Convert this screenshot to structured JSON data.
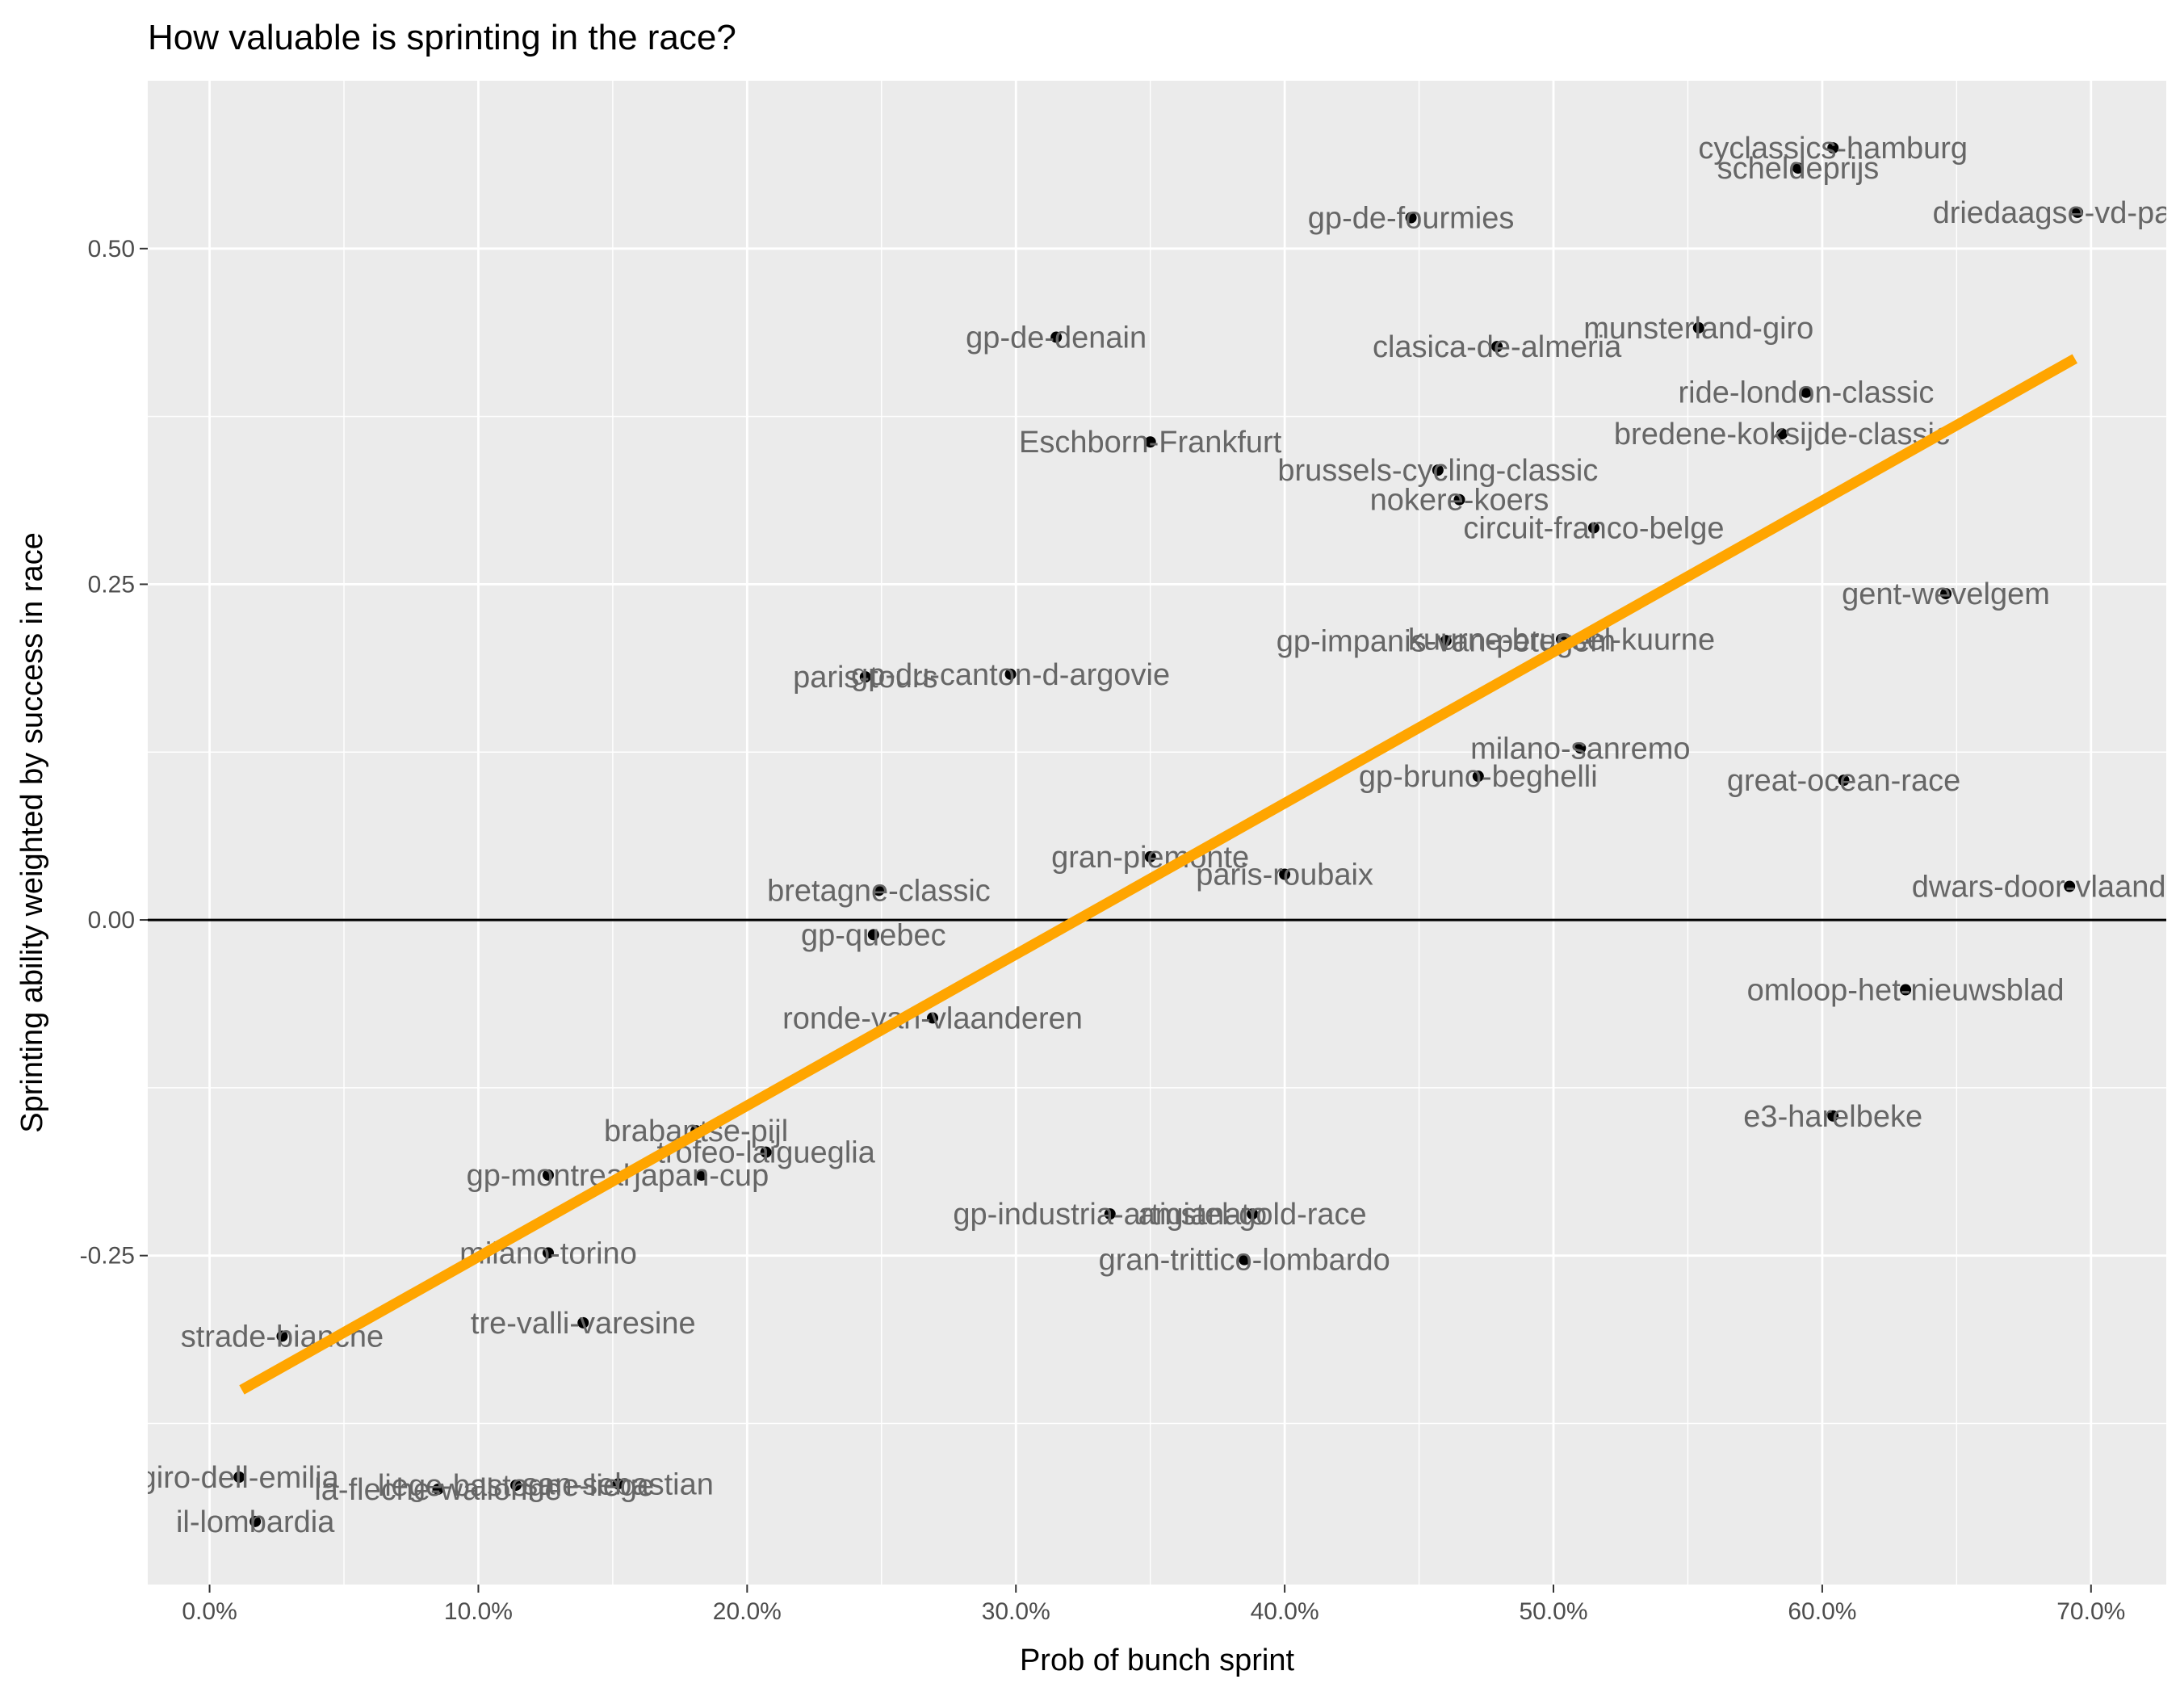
{
  "chart_data": {
    "type": "scatter",
    "title": "How valuable is sprinting in the race?",
    "xlabel": "Prob of bunch sprint",
    "ylabel": "Sprinting ability weighted by success in race",
    "xlim": [
      -0.023,
      0.728
    ],
    "ylim": [
      -0.495,
      0.625
    ],
    "x_ticks": [
      0.0,
      0.1,
      0.2,
      0.3,
      0.4,
      0.5,
      0.6,
      0.7
    ],
    "x_tick_labels": [
      "0.0%",
      "10.0%",
      "20.0%",
      "30.0%",
      "40.0%",
      "50.0%",
      "60.0%",
      "70.0%"
    ],
    "y_ticks": [
      -0.25,
      0.0,
      0.25,
      0.5
    ],
    "y_tick_labels": [
      "-0.25",
      "0.00",
      "0.25",
      "0.50"
    ],
    "grid": true,
    "zero_line": true,
    "colors": {
      "panel_background": "#ebebeb",
      "grid": "#ffffff",
      "point": "#000000",
      "label": "#666666",
      "trend": "#ffa500"
    },
    "trend_line": {
      "x": [
        0.012,
        0.694
      ],
      "y": [
        -0.35,
        0.418
      ]
    },
    "points": [
      {
        "label": "cyclassics-hamburg",
        "x": 0.604,
        "y": 0.575
      },
      {
        "label": "scheldeprijs",
        "x": 0.591,
        "y": 0.56
      },
      {
        "label": "driedaagse-vd-panne",
        "x": 0.695,
        "y": 0.527
      },
      {
        "label": "gp-de-fourmies",
        "x": 0.447,
        "y": 0.523
      },
      {
        "label": "gp-de-denain",
        "x": 0.315,
        "y": 0.434
      },
      {
        "label": "munsterland-giro",
        "x": 0.554,
        "y": 0.441
      },
      {
        "label": "clasica-de-almeria",
        "x": 0.479,
        "y": 0.427
      },
      {
        "label": "ride-london-classic",
        "x": 0.594,
        "y": 0.393
      },
      {
        "label": "Eschborn-Frankfurt",
        "x": 0.35,
        "y": 0.356
      },
      {
        "label": "bredene-koksijde-classic",
        "x": 0.585,
        "y": 0.362
      },
      {
        "label": "brussels-cycling-classic",
        "x": 0.457,
        "y": 0.335
      },
      {
        "label": "nokere-koers",
        "x": 0.465,
        "y": 0.313
      },
      {
        "label": "circuit-franco-belge",
        "x": 0.515,
        "y": 0.292
      },
      {
        "label": "gent-wevelgem",
        "x": 0.646,
        "y": 0.243
      },
      {
        "label": "gp-impanis-van-petegem",
        "x": 0.46,
        "y": 0.208
      },
      {
        "label": "kuurne-brussel-kuurne",
        "x": 0.503,
        "y": 0.209
      },
      {
        "label": "gp-du-canton-d-argovie",
        "x": 0.298,
        "y": 0.183
      },
      {
        "label": "paris-tours",
        "x": 0.244,
        "y": 0.181
      },
      {
        "label": "milano-sanremo",
        "x": 0.51,
        "y": 0.128
      },
      {
        "label": "gp-bruno-beghelli",
        "x": 0.472,
        "y": 0.107
      },
      {
        "label": "great-ocean-race",
        "x": 0.608,
        "y": 0.104
      },
      {
        "label": "gran-piemonte",
        "x": 0.35,
        "y": 0.047
      },
      {
        "label": "paris-roubaix",
        "x": 0.4,
        "y": 0.034
      },
      {
        "label": "bretagne-classic",
        "x": 0.249,
        "y": 0.022
      },
      {
        "label": "dwars-door-vlaanderen",
        "x": 0.692,
        "y": 0.025
      },
      {
        "label": "gp-quebec",
        "x": 0.247,
        "y": -0.011
      },
      {
        "label": "ronde-van-vlaanderen",
        "x": 0.269,
        "y": -0.073
      },
      {
        "label": "omloop-het-nieuwsblad",
        "x": 0.631,
        "y": -0.052
      },
      {
        "label": "e3-harelbeke",
        "x": 0.604,
        "y": -0.146
      },
      {
        "label": "brabantse-pijl",
        "x": 0.181,
        "y": -0.157
      },
      {
        "label": "trofeo-laigueglia",
        "x": 0.207,
        "y": -0.173
      },
      {
        "label": "gp-montreal",
        "x": 0.126,
        "y": -0.19
      },
      {
        "label": "japan-cup",
        "x": 0.183,
        "y": -0.19
      },
      {
        "label": "gp-industria-artigianato",
        "x": 0.335,
        "y": -0.219
      },
      {
        "label": "amstel-gold-race",
        "x": 0.388,
        "y": -0.219
      },
      {
        "label": "gran-trittico-lombardo",
        "x": 0.385,
        "y": -0.253
      },
      {
        "label": "milano-torino",
        "x": 0.126,
        "y": -0.248
      },
      {
        "label": "tre-valli-varesine",
        "x": 0.139,
        "y": -0.3
      },
      {
        "label": "strade-bianche",
        "x": 0.027,
        "y": -0.31
      },
      {
        "label": "giro-dell-emilia",
        "x": 0.011,
        "y": -0.415
      },
      {
        "label": "la-fleche-wallonne",
        "x": 0.085,
        "y": -0.424
      },
      {
        "label": "san-sebastian",
        "x": 0.152,
        "y": -0.42
      },
      {
        "label": "liege-bastogne-liege",
        "x": 0.114,
        "y": -0.421
      },
      {
        "label": "il-lombardia",
        "x": 0.017,
        "y": -0.448
      }
    ]
  }
}
